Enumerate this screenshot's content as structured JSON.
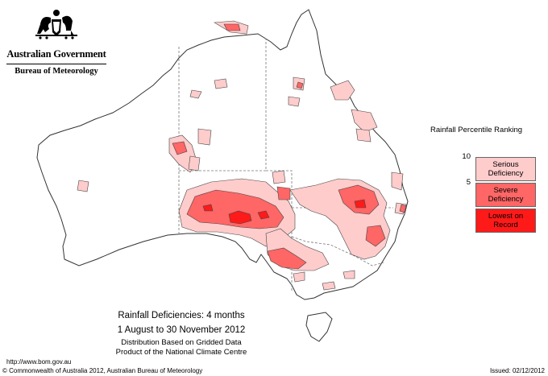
{
  "header": {
    "government": "Australian Government",
    "agency": "Bureau of Meteorology"
  },
  "legend": {
    "title": "Rainfall Percentile Ranking",
    "tick_high": "10",
    "tick_low": "5",
    "classes": [
      {
        "label_line1": "Serious",
        "label_line2": "Deficiency",
        "color": "#ffcccc"
      },
      {
        "label_line1": "Severe",
        "label_line2": "Deficiency",
        "color": "#ff6666"
      },
      {
        "label_line1": "Lowest on",
        "label_line2": "Record",
        "color": "#ff1a1a"
      }
    ]
  },
  "caption": {
    "title": "Rainfall Deficiencies: 4 months",
    "period": "1 August to 30 November 2012",
    "note_line1": "Distribution Based on Gridded Data",
    "note_line2": "Product of the National Climate Centre"
  },
  "footer": {
    "url": "http://www.bom.gov.au",
    "copyright": "© Commonwealth of Australia 2012, Australian Bureau of Meteorology",
    "issued": "Issued: 02/12/2012"
  },
  "colors": {
    "serious": "#ffcccc",
    "severe": "#ff6666",
    "lowest": "#ff1a1a",
    "coast": "#333333",
    "borders": "#777777"
  },
  "icons": [
    "coat-of-arms-icon"
  ]
}
